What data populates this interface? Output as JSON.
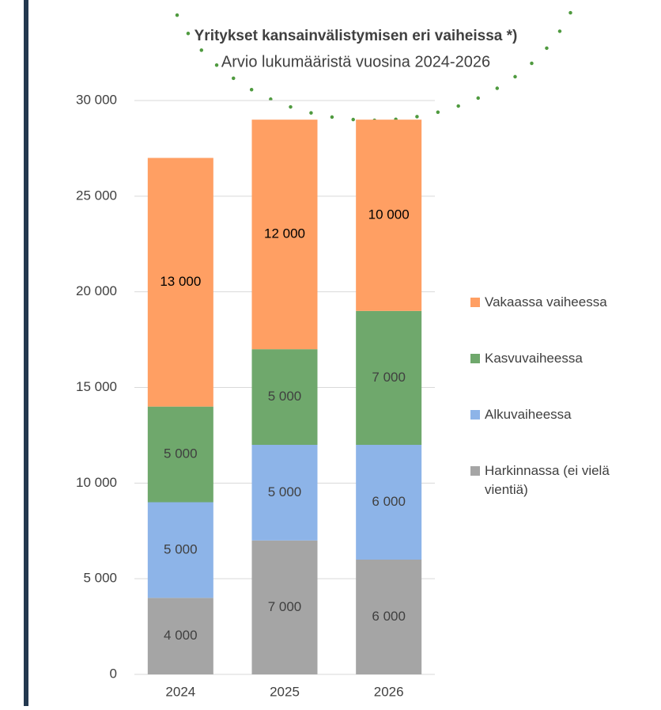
{
  "chart_data": {
    "type": "stacked-bar",
    "title": "Yritykset kansainvälistymisen eri vaiheissa *)",
    "subtitle": "Arvio lukumääristä vuosina 2024-2026",
    "categories": [
      "2024",
      "2025",
      "2026"
    ],
    "series": [
      {
        "name": "Harkinnassa (ei vielä vientiä)",
        "color": "#a5a5a5",
        "values": [
          4000,
          7000,
          6000
        ],
        "value_labels": [
          "4 000",
          "7 000",
          "6 000"
        ]
      },
      {
        "name": "Alkuvaiheessa",
        "color": "#8db4e8",
        "values": [
          5000,
          5000,
          6000
        ],
        "value_labels": [
          "5 000",
          "5 000",
          "6 000"
        ]
      },
      {
        "name": "Kasvuvaiheessa",
        "color": "#6fa86c",
        "values": [
          5000,
          5000,
          7000
        ],
        "value_labels": [
          "5 000",
          "5 000",
          "7 000"
        ]
      },
      {
        "name": "Vakaassa vaiheessa",
        "color": "#ff9f63",
        "values": [
          13000,
          12000,
          10000
        ],
        "value_labels": [
          "13 000",
          "12 000",
          "10 000"
        ]
      }
    ],
    "ylim": [
      0,
      30000
    ],
    "yticks": [
      0,
      {
        "value": 5000,
        "label": "5 000"
      },
      {
        "value": 10000,
        "label": "10 000"
      },
      {
        "value": 15000,
        "label": "15 000"
      },
      {
        "value": 20000,
        "label": "20 000"
      },
      {
        "value": 25000,
        "label": "25 000"
      },
      {
        "value": 30000,
        "label": "30 000"
      }
    ],
    "grid": true,
    "legend": "right"
  }
}
